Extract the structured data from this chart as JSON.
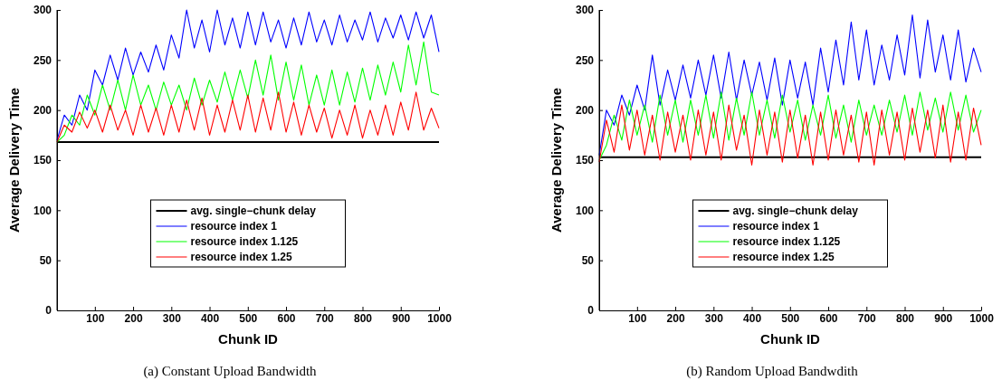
{
  "chart_data": [
    {
      "type": "line",
      "xlabel": "Chunk ID",
      "ylabel": "Average Delivery Time",
      "annotations": [
        "(a)  Constant Upload Bandwidth"
      ],
      "xlim": [
        1,
        1000
      ],
      "ylim": [
        0,
        300
      ],
      "xticks": [
        100,
        200,
        300,
        400,
        500,
        600,
        700,
        800,
        900,
        1000
      ],
      "yticks": [
        0,
        50,
        100,
        150,
        200,
        250,
        300
      ],
      "grid": false,
      "legend": "bottom",
      "marker": "none",
      "line_style": "solid",
      "x": [
        1,
        20,
        40,
        60,
        80,
        100,
        120,
        140,
        160,
        180,
        200,
        220,
        240,
        260,
        280,
        300,
        320,
        340,
        360,
        380,
        400,
        420,
        440,
        460,
        480,
        500,
        520,
        540,
        560,
        580,
        600,
        620,
        640,
        660,
        680,
        700,
        720,
        740,
        760,
        780,
        800,
        820,
        840,
        860,
        880,
        900,
        920,
        940,
        960,
        980,
        1000
      ],
      "series": [
        {
          "name": "avg. single−chunk delay",
          "color": "#000000",
          "values": [
            168,
            168,
            168,
            168,
            168,
            168,
            168,
            168,
            168,
            168,
            168,
            168,
            168,
            168,
            168,
            168,
            168,
            168,
            168,
            168,
            168,
            168,
            168,
            168,
            168,
            168,
            168,
            168,
            168,
            168,
            168,
            168,
            168,
            168,
            168,
            168,
            168,
            168,
            168,
            168,
            168,
            168,
            168,
            168,
            168,
            168,
            168,
            168,
            168,
            168,
            168
          ]
        },
        {
          "name": "resource index 1",
          "color": "#0000ff",
          "values": [
            170,
            195,
            185,
            215,
            200,
            240,
            225,
            255,
            230,
            262,
            235,
            258,
            238,
            265,
            240,
            275,
            252,
            300,
            262,
            290,
            258,
            300,
            265,
            292,
            262,
            298,
            265,
            298,
            268,
            290,
            262,
            292,
            265,
            298,
            268,
            290,
            265,
            295,
            268,
            290,
            270,
            298,
            268,
            292,
            272,
            295,
            270,
            298,
            272,
            295,
            258
          ]
        },
        {
          "name": "resource index 1.125",
          "color": "#00ff00",
          "values": [
            168,
            175,
            195,
            185,
            215,
            195,
            225,
            200,
            230,
            200,
            235,
            205,
            225,
            200,
            228,
            205,
            225,
            200,
            232,
            205,
            230,
            208,
            238,
            210,
            240,
            212,
            250,
            215,
            255,
            210,
            248,
            210,
            245,
            205,
            235,
            205,
            240,
            205,
            238,
            208,
            242,
            210,
            245,
            215,
            248,
            218,
            265,
            225,
            268,
            218,
            215
          ]
        },
        {
          "name": "resource index 1.25",
          "color": "#ff0000",
          "values": [
            168,
            185,
            178,
            198,
            182,
            200,
            178,
            205,
            180,
            200,
            175,
            205,
            178,
            202,
            175,
            205,
            178,
            210,
            180,
            212,
            175,
            205,
            178,
            210,
            180,
            215,
            178,
            212,
            180,
            218,
            178,
            208,
            175,
            205,
            178,
            202,
            172,
            200,
            175,
            205,
            172,
            200,
            175,
            205,
            175,
            208,
            180,
            218,
            180,
            202,
            182
          ]
        }
      ]
    },
    {
      "type": "line",
      "xlabel": "Chunk ID",
      "ylabel": "Average Delivery Time",
      "annotations": [
        "(b)  Random Upload Bandwdith"
      ],
      "xlim": [
        1,
        1000
      ],
      "ylim": [
        0,
        300
      ],
      "xticks": [
        100,
        200,
        300,
        400,
        500,
        600,
        700,
        800,
        900,
        1000
      ],
      "yticks": [
        0,
        50,
        100,
        150,
        200,
        250,
        300
      ],
      "grid": false,
      "legend": "bottom",
      "marker": "none",
      "line_style": "solid",
      "x": [
        1,
        20,
        40,
        60,
        80,
        100,
        120,
        140,
        160,
        180,
        200,
        220,
        240,
        260,
        280,
        300,
        320,
        340,
        360,
        380,
        400,
        420,
        440,
        460,
        480,
        500,
        520,
        540,
        560,
        580,
        600,
        620,
        640,
        660,
        680,
        700,
        720,
        740,
        760,
        780,
        800,
        820,
        840,
        860,
        880,
        900,
        920,
        940,
        960,
        980,
        1000
      ],
      "series": [
        {
          "name": "avg. single−chunk delay",
          "color": "#000000",
          "values": [
            153,
            153,
            153,
            153,
            153,
            153,
            153,
            153,
            153,
            153,
            153,
            153,
            153,
            153,
            153,
            153,
            153,
            153,
            153,
            153,
            153,
            153,
            153,
            153,
            153,
            153,
            153,
            153,
            153,
            153,
            153,
            153,
            153,
            153,
            153,
            153,
            153,
            153,
            153,
            153,
            153,
            153,
            153,
            153,
            153,
            153,
            153,
            153,
            153,
            153,
            153
          ]
        },
        {
          "name": "resource index 1",
          "color": "#0000ff",
          "values": [
            155,
            200,
            185,
            215,
            195,
            225,
            200,
            255,
            205,
            240,
            210,
            245,
            212,
            250,
            215,
            255,
            212,
            258,
            210,
            250,
            215,
            248,
            210,
            252,
            205,
            250,
            212,
            248,
            205,
            262,
            218,
            270,
            225,
            288,
            230,
            280,
            225,
            265,
            230,
            275,
            235,
            295,
            232,
            290,
            238,
            275,
            230,
            280,
            228,
            262,
            238
          ]
        },
        {
          "name": "resource index 1.125",
          "color": "#00ff00",
          "values": [
            150,
            165,
            195,
            170,
            210,
            175,
            205,
            168,
            215,
            175,
            210,
            168,
            210,
            175,
            215,
            172,
            218,
            170,
            212,
            175,
            218,
            175,
            210,
            172,
            215,
            178,
            210,
            170,
            205,
            175,
            215,
            172,
            205,
            168,
            210,
            175,
            205,
            175,
            210,
            178,
            215,
            175,
            218,
            180,
            212,
            178,
            218,
            180,
            215,
            178,
            200
          ]
        },
        {
          "name": "resource index 1.25",
          "color": "#ff0000",
          "values": [
            148,
            190,
            158,
            205,
            160,
            200,
            155,
            195,
            150,
            198,
            158,
            195,
            150,
            200,
            155,
            198,
            150,
            205,
            160,
            195,
            145,
            200,
            155,
            198,
            148,
            200,
            152,
            195,
            145,
            198,
            150,
            200,
            155,
            195,
            148,
            198,
            145,
            200,
            155,
            198,
            150,
            202,
            158,
            200,
            152,
            205,
            148,
            198,
            150,
            202,
            165
          ]
        }
      ]
    }
  ]
}
